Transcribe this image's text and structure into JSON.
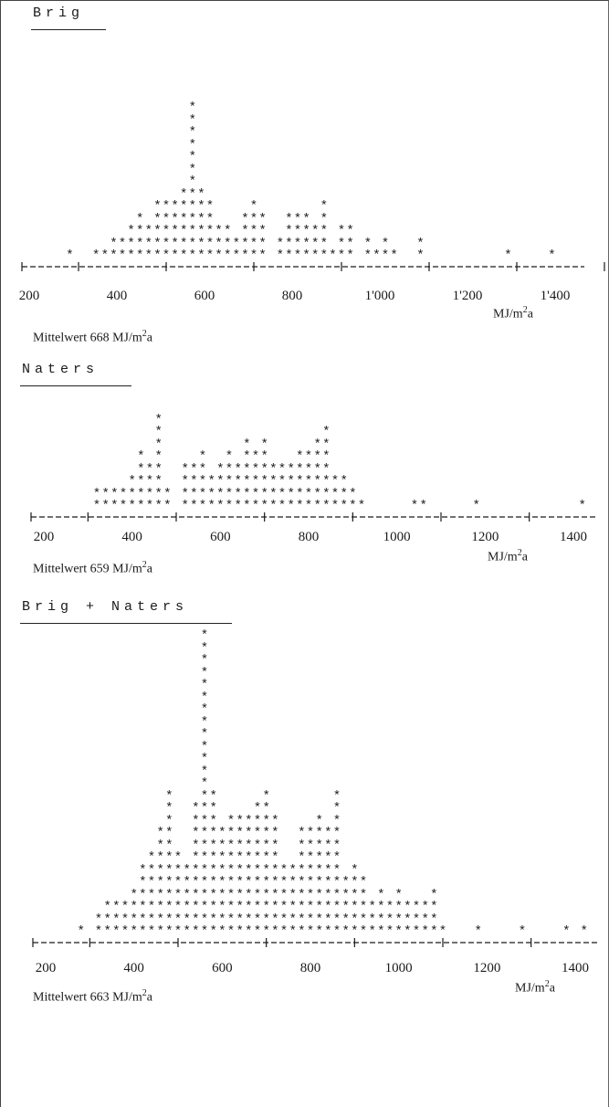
{
  "chart_data": [
    {
      "type": "scatter",
      "title": "Brig",
      "x_unit": "MJ/m2a",
      "x_tick_labels": [
        "200",
        "400",
        "600",
        "800",
        "1'000",
        "1'200",
        "1'400"
      ],
      "xlim": [
        200,
        1400
      ],
      "mean_label": "Mittelwert 668 MJ/m2a",
      "mean_value": 668,
      "counts": [
        {
          "x": 280,
          "n": 1
        },
        {
          "x": 340,
          "n": 1
        },
        {
          "x": 360,
          "n": 1
        },
        {
          "x": 380,
          "n": 2
        },
        {
          "x": 400,
          "n": 2
        },
        {
          "x": 420,
          "n": 3
        },
        {
          "x": 440,
          "n": 4
        },
        {
          "x": 460,
          "n": 3
        },
        {
          "x": 480,
          "n": 5
        },
        {
          "x": 500,
          "n": 5
        },
        {
          "x": 520,
          "n": 5
        },
        {
          "x": 540,
          "n": 6
        },
        {
          "x": 560,
          "n": 13
        },
        {
          "x": 580,
          "n": 6
        },
        {
          "x": 600,
          "n": 5
        },
        {
          "x": 620,
          "n": 3
        },
        {
          "x": 640,
          "n": 3
        },
        {
          "x": 660,
          "n": 2
        },
        {
          "x": 680,
          "n": 4
        },
        {
          "x": 700,
          "n": 5
        },
        {
          "x": 720,
          "n": 4
        },
        {
          "x": 760,
          "n": 2
        },
        {
          "x": 780,
          "n": 4
        },
        {
          "x": 800,
          "n": 4
        },
        {
          "x": 820,
          "n": 4
        },
        {
          "x": 840,
          "n": 3
        },
        {
          "x": 860,
          "n": 5
        },
        {
          "x": 880,
          "n": 1
        },
        {
          "x": 900,
          "n": 3
        },
        {
          "x": 920,
          "n": 3
        },
        {
          "x": 960,
          "n": 2
        },
        {
          "x": 980,
          "n": 1
        },
        {
          "x": 1000,
          "n": 2
        },
        {
          "x": 1020,
          "n": 1
        },
        {
          "x": 1080,
          "n": 2
        },
        {
          "x": 1280,
          "n": 1
        },
        {
          "x": 1380,
          "n": 1
        }
      ]
    },
    {
      "type": "scatter",
      "title": "Naters",
      "x_unit": "MJ/m2a",
      "x_tick_labels": [
        "200",
        "400",
        "600",
        "800",
        "1000",
        "1200",
        "1400"
      ],
      "xlim": [
        200,
        1400
      ],
      "mean_label": "Mittelwert 659 MJ/m2a",
      "mean_value": 659,
      "counts": [
        {
          "x": 320,
          "n": 2
        },
        {
          "x": 340,
          "n": 2
        },
        {
          "x": 360,
          "n": 2
        },
        {
          "x": 380,
          "n": 2
        },
        {
          "x": 400,
          "n": 3
        },
        {
          "x": 420,
          "n": 5
        },
        {
          "x": 440,
          "n": 4
        },
        {
          "x": 460,
          "n": 8
        },
        {
          "x": 480,
          "n": 2
        },
        {
          "x": 520,
          "n": 4
        },
        {
          "x": 540,
          "n": 4
        },
        {
          "x": 560,
          "n": 5
        },
        {
          "x": 580,
          "n": 3
        },
        {
          "x": 600,
          "n": 4
        },
        {
          "x": 620,
          "n": 5
        },
        {
          "x": 640,
          "n": 4
        },
        {
          "x": 660,
          "n": 6
        },
        {
          "x": 680,
          "n": 5
        },
        {
          "x": 700,
          "n": 6
        },
        {
          "x": 720,
          "n": 4
        },
        {
          "x": 740,
          "n": 4
        },
        {
          "x": 760,
          "n": 4
        },
        {
          "x": 780,
          "n": 5
        },
        {
          "x": 800,
          "n": 5
        },
        {
          "x": 820,
          "n": 6
        },
        {
          "x": 840,
          "n": 7
        },
        {
          "x": 860,
          "n": 3
        },
        {
          "x": 880,
          "n": 3
        },
        {
          "x": 900,
          "n": 2
        },
        {
          "x": 920,
          "n": 1
        },
        {
          "x": 1040,
          "n": 1
        },
        {
          "x": 1060,
          "n": 1
        },
        {
          "x": 1180,
          "n": 1
        },
        {
          "x": 1420,
          "n": 1
        }
      ]
    },
    {
      "type": "scatter",
      "title": "Brig + Naters",
      "x_unit": "MJ/m2a",
      "x_tick_labels": [
        "200",
        "400",
        "600",
        "800",
        "1000",
        "1200",
        "1400"
      ],
      "xlim": [
        200,
        1400
      ],
      "mean_label": "Mittelwert 663 MJ/m2a",
      "mean_value": 663,
      "counts": [
        {
          "x": 280,
          "n": 1
        },
        {
          "x": 320,
          "n": 2
        },
        {
          "x": 340,
          "n": 3
        },
        {
          "x": 360,
          "n": 3
        },
        {
          "x": 380,
          "n": 3
        },
        {
          "x": 400,
          "n": 4
        },
        {
          "x": 420,
          "n": 6
        },
        {
          "x": 440,
          "n": 7
        },
        {
          "x": 460,
          "n": 9
        },
        {
          "x": 480,
          "n": 12
        },
        {
          "x": 500,
          "n": 7
        },
        {
          "x": 520,
          "n": 6
        },
        {
          "x": 540,
          "n": 11
        },
        {
          "x": 560,
          "n": 25
        },
        {
          "x": 580,
          "n": 12
        },
        {
          "x": 600,
          "n": 9
        },
        {
          "x": 620,
          "n": 10
        },
        {
          "x": 640,
          "n": 10
        },
        {
          "x": 660,
          "n": 10
        },
        {
          "x": 680,
          "n": 11
        },
        {
          "x": 700,
          "n": 12
        },
        {
          "x": 720,
          "n": 10
        },
        {
          "x": 740,
          "n": 6
        },
        {
          "x": 760,
          "n": 6
        },
        {
          "x": 780,
          "n": 9
        },
        {
          "x": 800,
          "n": 9
        },
        {
          "x": 820,
          "n": 10
        },
        {
          "x": 840,
          "n": 9
        },
        {
          "x": 860,
          "n": 12
        },
        {
          "x": 880,
          "n": 5
        },
        {
          "x": 900,
          "n": 6
        },
        {
          "x": 920,
          "n": 5
        },
        {
          "x": 940,
          "n": 3
        },
        {
          "x": 960,
          "n": 4
        },
        {
          "x": 980,
          "n": 3
        },
        {
          "x": 1000,
          "n": 4
        },
        {
          "x": 1020,
          "n": 3
        },
        {
          "x": 1040,
          "n": 3
        },
        {
          "x": 1060,
          "n": 3
        },
        {
          "x": 1080,
          "n": 4
        },
        {
          "x": 1100,
          "n": 1
        },
        {
          "x": 1180,
          "n": 1
        },
        {
          "x": 1280,
          "n": 1
        },
        {
          "x": 1380,
          "n": 1
        },
        {
          "x": 1420,
          "n": 1
        }
      ]
    }
  ]
}
